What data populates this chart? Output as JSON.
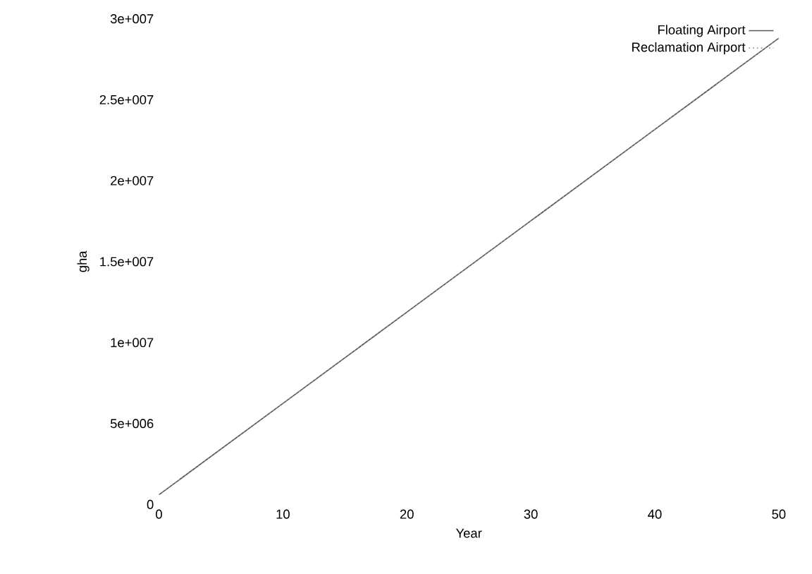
{
  "chart_data": {
    "type": "line",
    "xlabel": "Year",
    "ylabel": "gha",
    "x": [
      0,
      10,
      20,
      30,
      40,
      50
    ],
    "series": [
      {
        "name": "Floating Airport",
        "color": "#555555",
        "line_style": "solid",
        "values": [
          600000,
          6240000,
          11880000,
          17520000,
          23160000,
          28800000
        ]
      },
      {
        "name": "Reclamation Airport",
        "color": "#999999",
        "line_style": "dotted",
        "values": [
          600000,
          6240000,
          11880000,
          17520000,
          23160000,
          28800000
        ]
      }
    ],
    "xlim": [
      0,
      50
    ],
    "ylim": [
      0,
      30000000
    ],
    "xticks": [
      0,
      10,
      20,
      30,
      40,
      50
    ],
    "yticks": [
      0,
      {
        "value": 5000000,
        "label": "5e+006"
      },
      {
        "value": 10000000,
        "label": "1e+007"
      },
      {
        "value": 15000000,
        "label": "1.5e+007"
      },
      {
        "value": 20000000,
        "label": "2e+007"
      },
      {
        "value": 25000000,
        "label": "2.5e+007"
      },
      {
        "value": 30000000,
        "label": "3e+007"
      }
    ],
    "legend": "top right"
  }
}
